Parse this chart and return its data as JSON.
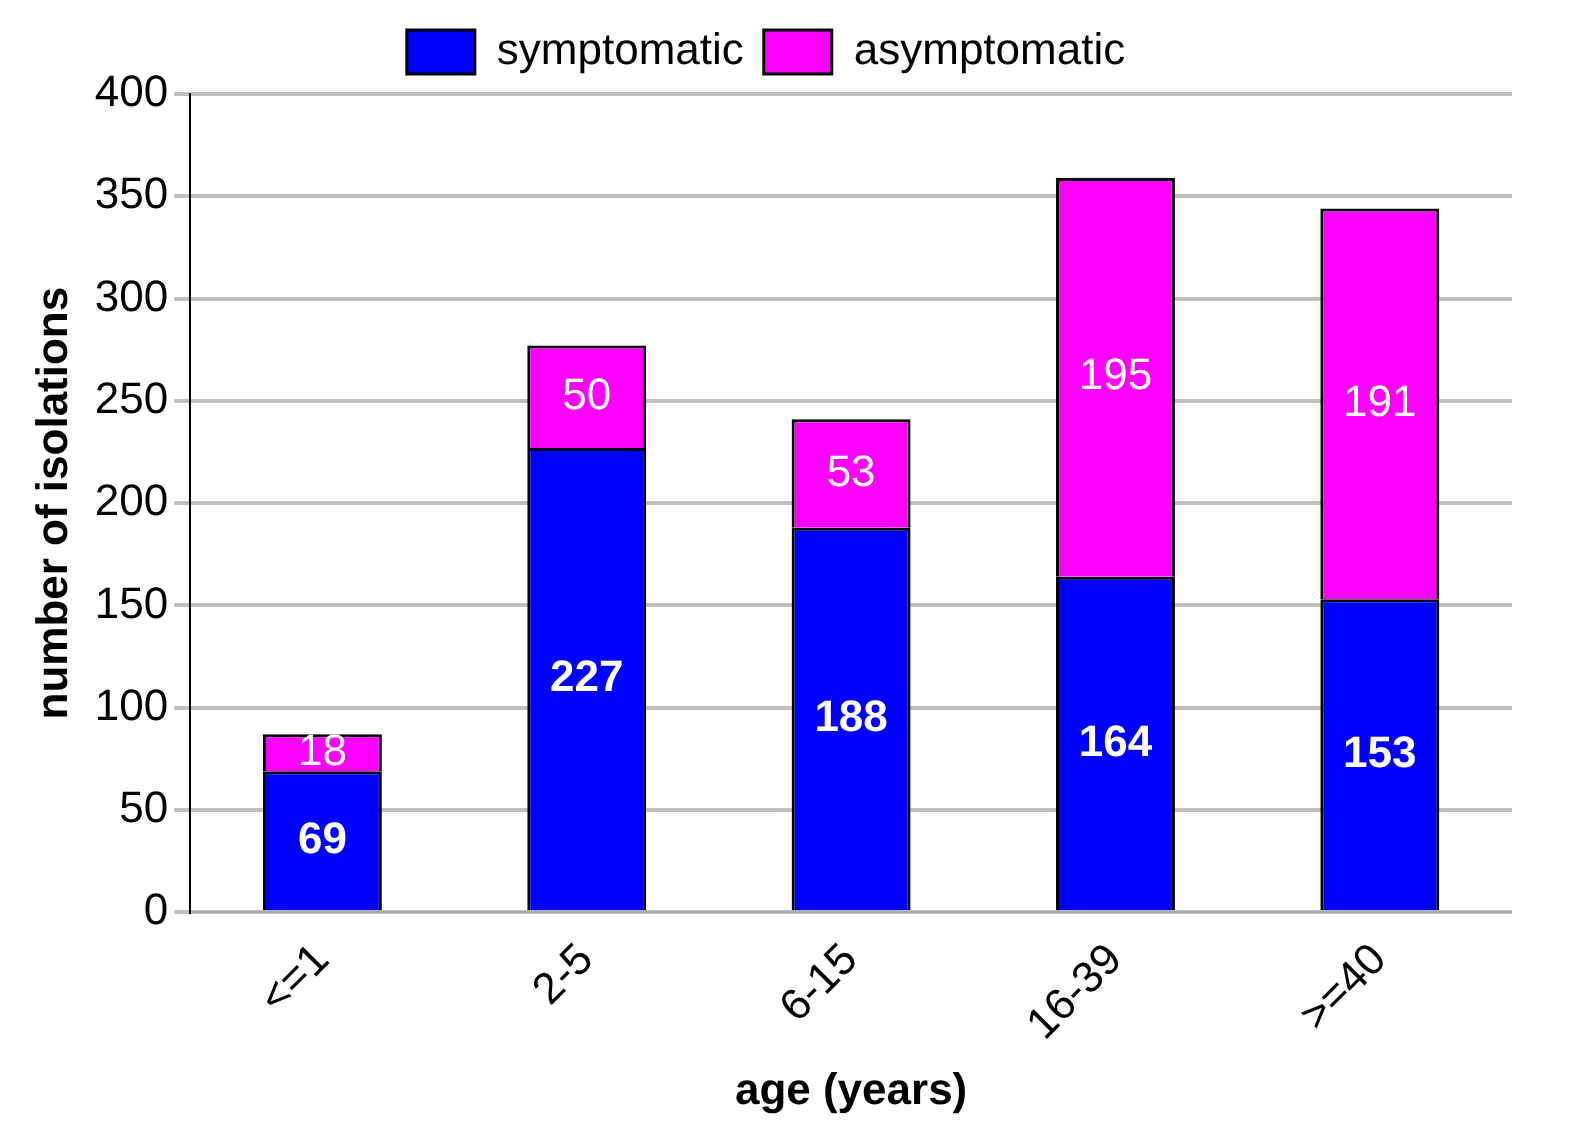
{
  "chart_data": {
    "type": "bar",
    "stacked": true,
    "xlabel": "age (years)",
    "ylabel": "number of isolations",
    "categories": [
      "<=1",
      "2-5",
      "6-15",
      "16-39",
      ">=40"
    ],
    "series": [
      {
        "name": "symptomatic",
        "color": "#0000ff",
        "values": [
          69,
          227,
          188,
          164,
          153
        ]
      },
      {
        "name": "asymptomatic",
        "color": "#ff00ff",
        "values": [
          18,
          50,
          53,
          195,
          191
        ]
      }
    ],
    "ylim": [
      0,
      400
    ],
    "yticks": [
      0,
      50,
      100,
      150,
      200,
      250,
      300,
      350,
      400
    ],
    "grid": "y",
    "legend": "top",
    "data_labels": true
  }
}
